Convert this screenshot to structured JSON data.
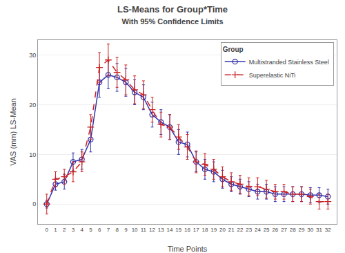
{
  "chart_data": {
    "type": "line",
    "title": "LS-Means for Group*Time",
    "subtitle": "With 95% Confidence Limits",
    "x_label": "Time Points",
    "y_label": "VAS (mm) LS-Mean",
    "x": [
      0,
      1,
      2,
      3,
      4,
      5,
      6,
      7,
      8,
      9,
      10,
      11,
      12,
      13,
      14,
      15,
      16,
      17,
      18,
      19,
      20,
      21,
      22,
      23,
      24,
      25,
      26,
      27,
      28,
      29,
      30,
      31,
      32
    ],
    "series": [
      {
        "name": "Multistranded Stainless Steel",
        "color": "#3333aa",
        "marker": "open circle",
        "line_style": "solid",
        "values": [
          0.0,
          4.0,
          4.5,
          8.5,
          9.0,
          13.0,
          24.5,
          26.0,
          25.5,
          24.5,
          22.5,
          21.5,
          18.0,
          16.5,
          15.5,
          12.5,
          12.0,
          8.5,
          7.0,
          6.5,
          5.0,
          4.0,
          3.5,
          3.0,
          2.5,
          2.5,
          2.0,
          2.0,
          2.0,
          2.0,
          1.8,
          1.8,
          1.5
        ],
        "errors": [
          0.8,
          1.2,
          1.5,
          1.8,
          2.0,
          2.5,
          3.0,
          2.8,
          2.8,
          2.8,
          2.5,
          2.5,
          2.5,
          2.5,
          2.5,
          2.5,
          2.5,
          2.0,
          2.0,
          2.0,
          1.8,
          1.5,
          1.5,
          1.5,
          1.5,
          1.5,
          1.5,
          1.5,
          1.5,
          1.5,
          1.5,
          1.5,
          1.5
        ]
      },
      {
        "name": "Superelastic NiTi",
        "color": "#cc2222",
        "marker": "plus",
        "line_style": "dashed",
        "values": [
          0.0,
          5.0,
          5.5,
          6.5,
          8.5,
          15.5,
          27.5,
          29.0,
          26.5,
          25.0,
          23.0,
          22.0,
          19.0,
          16.0,
          15.5,
          13.5,
          11.5,
          8.5,
          8.0,
          7.0,
          5.5,
          4.5,
          4.0,
          3.5,
          3.5,
          3.0,
          2.5,
          2.5,
          2.0,
          2.0,
          1.5,
          0.5,
          0.5
        ],
        "errors": [
          2.0,
          1.5,
          1.5,
          2.0,
          2.0,
          2.5,
          3.0,
          3.2,
          3.0,
          3.0,
          2.8,
          2.8,
          2.5,
          2.5,
          2.5,
          2.5,
          2.5,
          2.2,
          2.2,
          2.0,
          2.0,
          1.8,
          1.8,
          1.8,
          1.8,
          1.8,
          1.5,
          1.5,
          1.5,
          1.5,
          1.5,
          1.5,
          1.5
        ]
      }
    ],
    "xlim": [
      -1,
      33
    ],
    "xticks": [
      0,
      1,
      2,
      3,
      4,
      5,
      6,
      7,
      8,
      9,
      10,
      11,
      12,
      13,
      14,
      15,
      16,
      17,
      18,
      19,
      20,
      21,
      22,
      23,
      24,
      25,
      26,
      27,
      28,
      29,
      30,
      31,
      32
    ],
    "ylim": [
      -4,
      33
    ],
    "yticks": [
      0,
      10,
      20,
      30
    ],
    "grid": true,
    "legend": "upper right",
    "legend_title": "Group"
  }
}
